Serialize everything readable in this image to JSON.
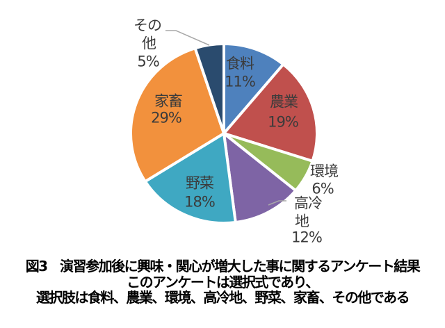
{
  "caption": {
    "lines": [
      "図3　演習参加後に興味・関心が増大した事に関するアンケート結果",
      "このアンケートは選択式であり、",
      "選択肢は食料、農業、環境、高冷地、野菜、家畜、その他である"
    ]
  },
  "chart_data": {
    "type": "pie",
    "title": "",
    "categories": [
      "食料",
      "農業",
      "環境",
      "高冷地",
      "野菜",
      "家畜",
      "その他"
    ],
    "values": [
      11,
      19,
      6,
      12,
      18,
      29,
      5
    ],
    "unit": "%",
    "start_angle_deg": 0,
    "direction": "clockwise",
    "legend": "none",
    "colors": [
      "#4E81BD",
      "#C0504D",
      "#96BB5A",
      "#7E64A5",
      "#3FA8C2",
      "#F2913D",
      "#2A4B6E"
    ],
    "slice_border_color": "#FFFFFF",
    "label_color": "#3B3B3B",
    "leader_line_color": "#A8A8A8",
    "labels": [
      {
        "slice": "食料",
        "placement": "inside",
        "lines": [
          "食料",
          "11%"
        ]
      },
      {
        "slice": "農業",
        "placement": "inside",
        "lines": [
          "農業",
          "19%"
        ]
      },
      {
        "slice": "環境",
        "placement": "outside",
        "lines": [
          "環境",
          "6%"
        ]
      },
      {
        "slice": "高冷地",
        "placement": "outside",
        "lines": [
          "高冷",
          "地",
          "12%"
        ]
      },
      {
        "slice": "野菜",
        "placement": "inside",
        "lines": [
          "野菜",
          "18%"
        ]
      },
      {
        "slice": "家畜",
        "placement": "inside",
        "lines": [
          "家畜",
          "29%"
        ]
      },
      {
        "slice": "その他",
        "placement": "outside",
        "lines": [
          "その",
          "他",
          "5%"
        ]
      }
    ]
  }
}
